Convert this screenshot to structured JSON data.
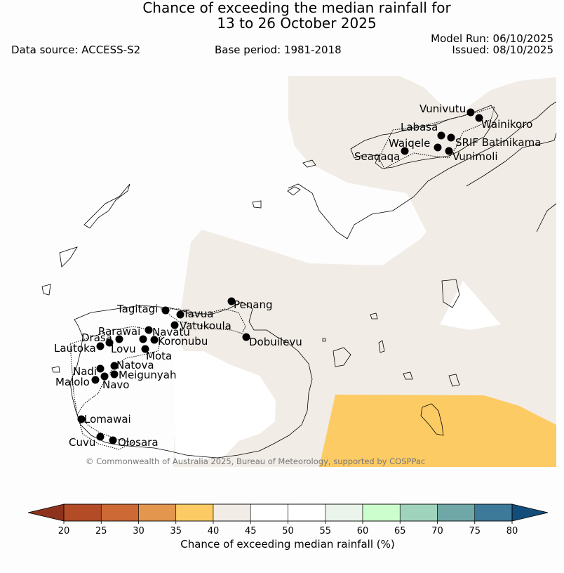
{
  "title": {
    "line1": "Chance of exceeding the median rainfall for",
    "line2": "13 to 26 October 2025"
  },
  "data_source": "Data source: ACCESS-S2",
  "base_period": "Base period: 1981-2018",
  "model_run": "Model Run: 06/10/2025",
  "issued": "Issued: 08/10/2025",
  "copyright": "© Commonwealth of Australia 2025, Bureau of Meteorology, supported by COSPPac",
  "places": {
    "vunivutu": "Vunivutu",
    "wainikoro": "Wainikoro",
    "labasa": "Labasa",
    "waiqele": "Waiqele",
    "srif_batinikama": "SRIF Batinikama",
    "seaqaqa": "Seaqaqa",
    "vunimoli": "Vunimoli",
    "tagitagi": "Tagitagi",
    "penang": "Penang",
    "tavua": "Tavua",
    "vatukoula": "Vatukoula",
    "rarawai": "Rarawai",
    "navatu": "Navatu",
    "drasa": "Drasa",
    "koronubu": "Koronubu",
    "dobuilevu": "Dobuilevu",
    "lautoka": "Lautoka",
    "lovu": "Lovu",
    "mota": "Mota",
    "natova": "Natova",
    "nadi": "Nadi",
    "meigunyah": "Meigunyah",
    "malolo": "Malolo",
    "navo": "Navo",
    "lomawai": "Lomawai",
    "cuvu": "Cuvu",
    "olosara": "Olosara"
  },
  "legend": {
    "label": "Chance of exceeding median rainfall (%)",
    "ticks": [
      "20",
      "25",
      "30",
      "35",
      "40",
      "45",
      "50",
      "55",
      "60",
      "65",
      "70",
      "75",
      "80"
    ],
    "colors": [
      "#b44b27",
      "#cc6934",
      "#e3964e",
      "#fdcb64",
      "#f1ece6",
      "#ffffff",
      "#ffffff",
      "#eaf4ea",
      "#ccfdcc",
      "#a0d3bb",
      "#70a8a8",
      "#3d7a9a"
    ],
    "low_arrow_color": "#8d331d",
    "high_arrow_color": "#134d7a"
  },
  "map_colors": {
    "land_fill": "#fdfdfd",
    "forecast_40_45": "#f1ece6",
    "forecast_35_40": "#fdcb64",
    "no_signal": "#ffffff"
  }
}
